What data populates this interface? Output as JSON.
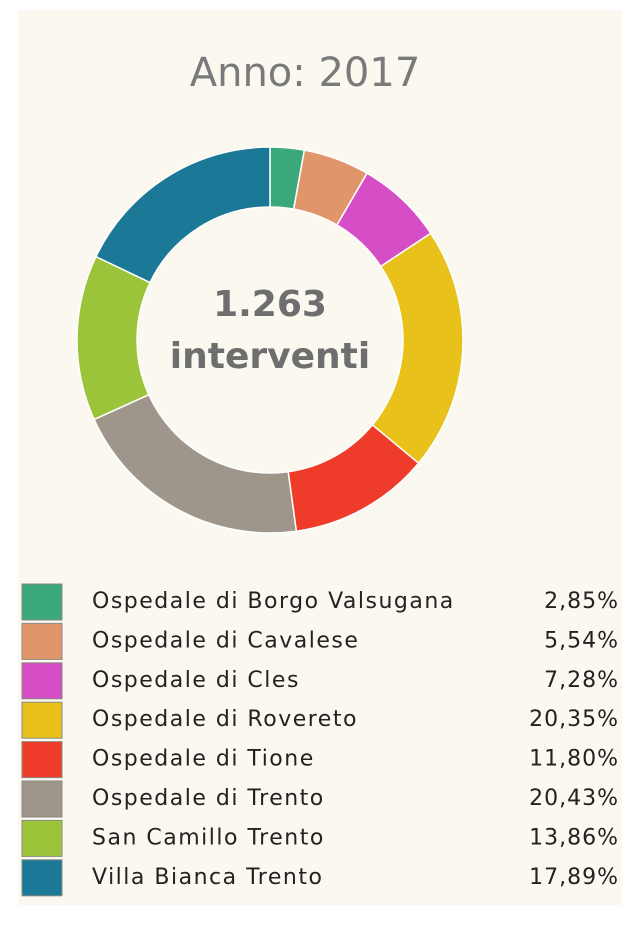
{
  "chart_data": {
    "type": "pie",
    "donut": true,
    "title": "Anno: 2017",
    "center_text": "1.263",
    "center_subtext": "interventi",
    "categories": [
      "Ospedale di Borgo Valsugana",
      "Ospedale di Cavalese",
      "Ospedale di Cles",
      "Ospedale di Rovereto",
      "Ospedale di Tione",
      "Ospedale di Trento",
      "San Camillo Trento",
      "Villa Bianca Trento"
    ],
    "values": [
      2.85,
      5.54,
      7.28,
      20.35,
      11.8,
      20.43,
      13.86,
      17.89
    ],
    "value_labels": [
      "2,85%",
      "5,54%",
      "7,28%",
      "20,35%",
      "11,80%",
      "20,43%",
      "13,86%",
      "17,89%"
    ],
    "colors": [
      "#3aa87a",
      "#e0956a",
      "#d64ec6",
      "#e8c21a",
      "#ee3b2a",
      "#9e968a",
      "#9cc43a",
      "#1b7896"
    ]
  }
}
